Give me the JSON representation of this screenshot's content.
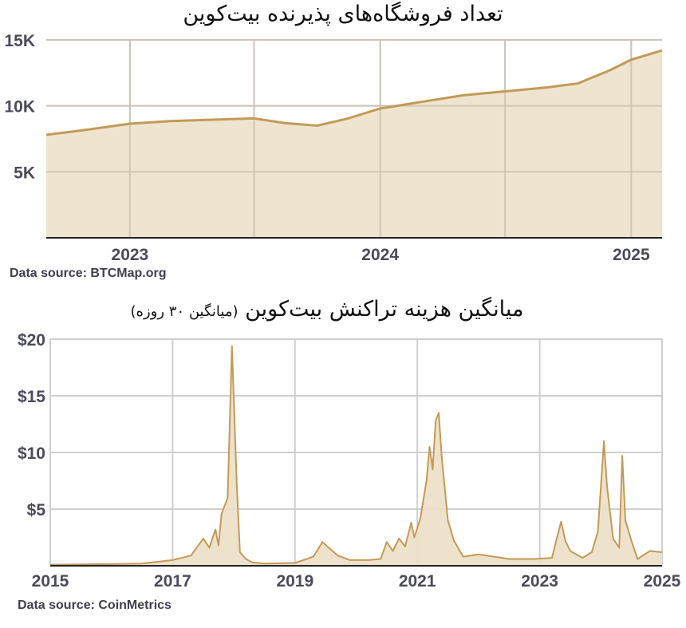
{
  "chart_data": [
    {
      "type": "area",
      "title": "تعداد فروشگاه‌های پذیرنده بیت‌کوین",
      "source": "Data source: BTCMap.org",
      "x_ticks": [
        "2023",
        "2024",
        "2025"
      ],
      "y_ticks": [
        "5K",
        "10K",
        "15K"
      ],
      "ylim": [
        0,
        15000
      ],
      "xlim": [
        "2022-09-01",
        "2025-02-15"
      ],
      "grid": true,
      "color": "#c39a58",
      "fill": "#ecdfc7",
      "x": [
        "2022-09-01",
        "2022-11-01",
        "2023-01-01",
        "2023-03-01",
        "2023-05-01",
        "2023-07-01",
        "2023-08-15",
        "2023-10-01",
        "2023-11-15",
        "2024-01-01",
        "2024-03-01",
        "2024-05-01",
        "2024-07-01",
        "2024-09-01",
        "2024-10-15",
        "2024-12-01",
        "2025-01-01",
        "2025-02-15"
      ],
      "values": [
        7800,
        8200,
        8650,
        8850,
        8950,
        9050,
        8700,
        8500,
        9050,
        9800,
        10300,
        10800,
        11100,
        11400,
        11700,
        12700,
        13500,
        14200
      ]
    },
    {
      "type": "area",
      "title": "میانگین هزینه تراکنش بیت‌کوین",
      "subtitle": "(میانگین ۳۰ روزه)",
      "source": "Data source: CoinMetrics",
      "x_ticks": [
        "2015",
        "2017",
        "2019",
        "2021",
        "2023",
        "2025"
      ],
      "y_ticks": [
        "$5",
        "$10",
        "$15",
        "$20"
      ],
      "ylim": [
        0,
        20
      ],
      "xlim": [
        2015,
        2025
      ],
      "grid": true,
      "color": "#c39a58",
      "fill": "#ecdfc7",
      "x": [
        2015,
        2016,
        2016.5,
        2017,
        2017.3,
        2017.5,
        2017.6,
        2017.7,
        2017.75,
        2017.8,
        2017.9,
        2017.97,
        2018.05,
        2018.1,
        2018.2,
        2018.3,
        2018.5,
        2019,
        2019.3,
        2019.45,
        2019.55,
        2019.7,
        2019.9,
        2020.2,
        2020.4,
        2020.5,
        2020.6,
        2020.7,
        2020.8,
        2020.9,
        2020.95,
        2021.05,
        2021.15,
        2021.2,
        2021.25,
        2021.3,
        2021.35,
        2021.4,
        2021.5,
        2021.6,
        2021.75,
        2022,
        2022.5,
        2022.9,
        2023.2,
        2023.35,
        2023.42,
        2023.5,
        2023.7,
        2023.85,
        2023.95,
        2024.05,
        2024.1,
        2024.2,
        2024.3,
        2024.35,
        2024.4,
        2024.5,
        2024.6,
        2024.8,
        2025
      ],
      "values": [
        0.1,
        0.15,
        0.2,
        0.5,
        0.9,
        2.4,
        1.6,
        3.2,
        1.8,
        4.6,
        6,
        19.4,
        7,
        1.2,
        0.6,
        0.3,
        0.2,
        0.25,
        0.8,
        2.1,
        1.6,
        0.9,
        0.5,
        0.5,
        0.6,
        2.1,
        1.3,
        2.4,
        1.7,
        3.8,
        2.5,
        4.2,
        7.5,
        10.5,
        8.5,
        12.8,
        13.5,
        9.5,
        4,
        2.2,
        0.8,
        1,
        0.6,
        0.6,
        0.7,
        3.9,
        2.2,
        1.3,
        0.7,
        1.2,
        3,
        11,
        7,
        2.4,
        1.6,
        9.7,
        4,
        2.2,
        0.6,
        1.3,
        1.2
      ]
    }
  ]
}
